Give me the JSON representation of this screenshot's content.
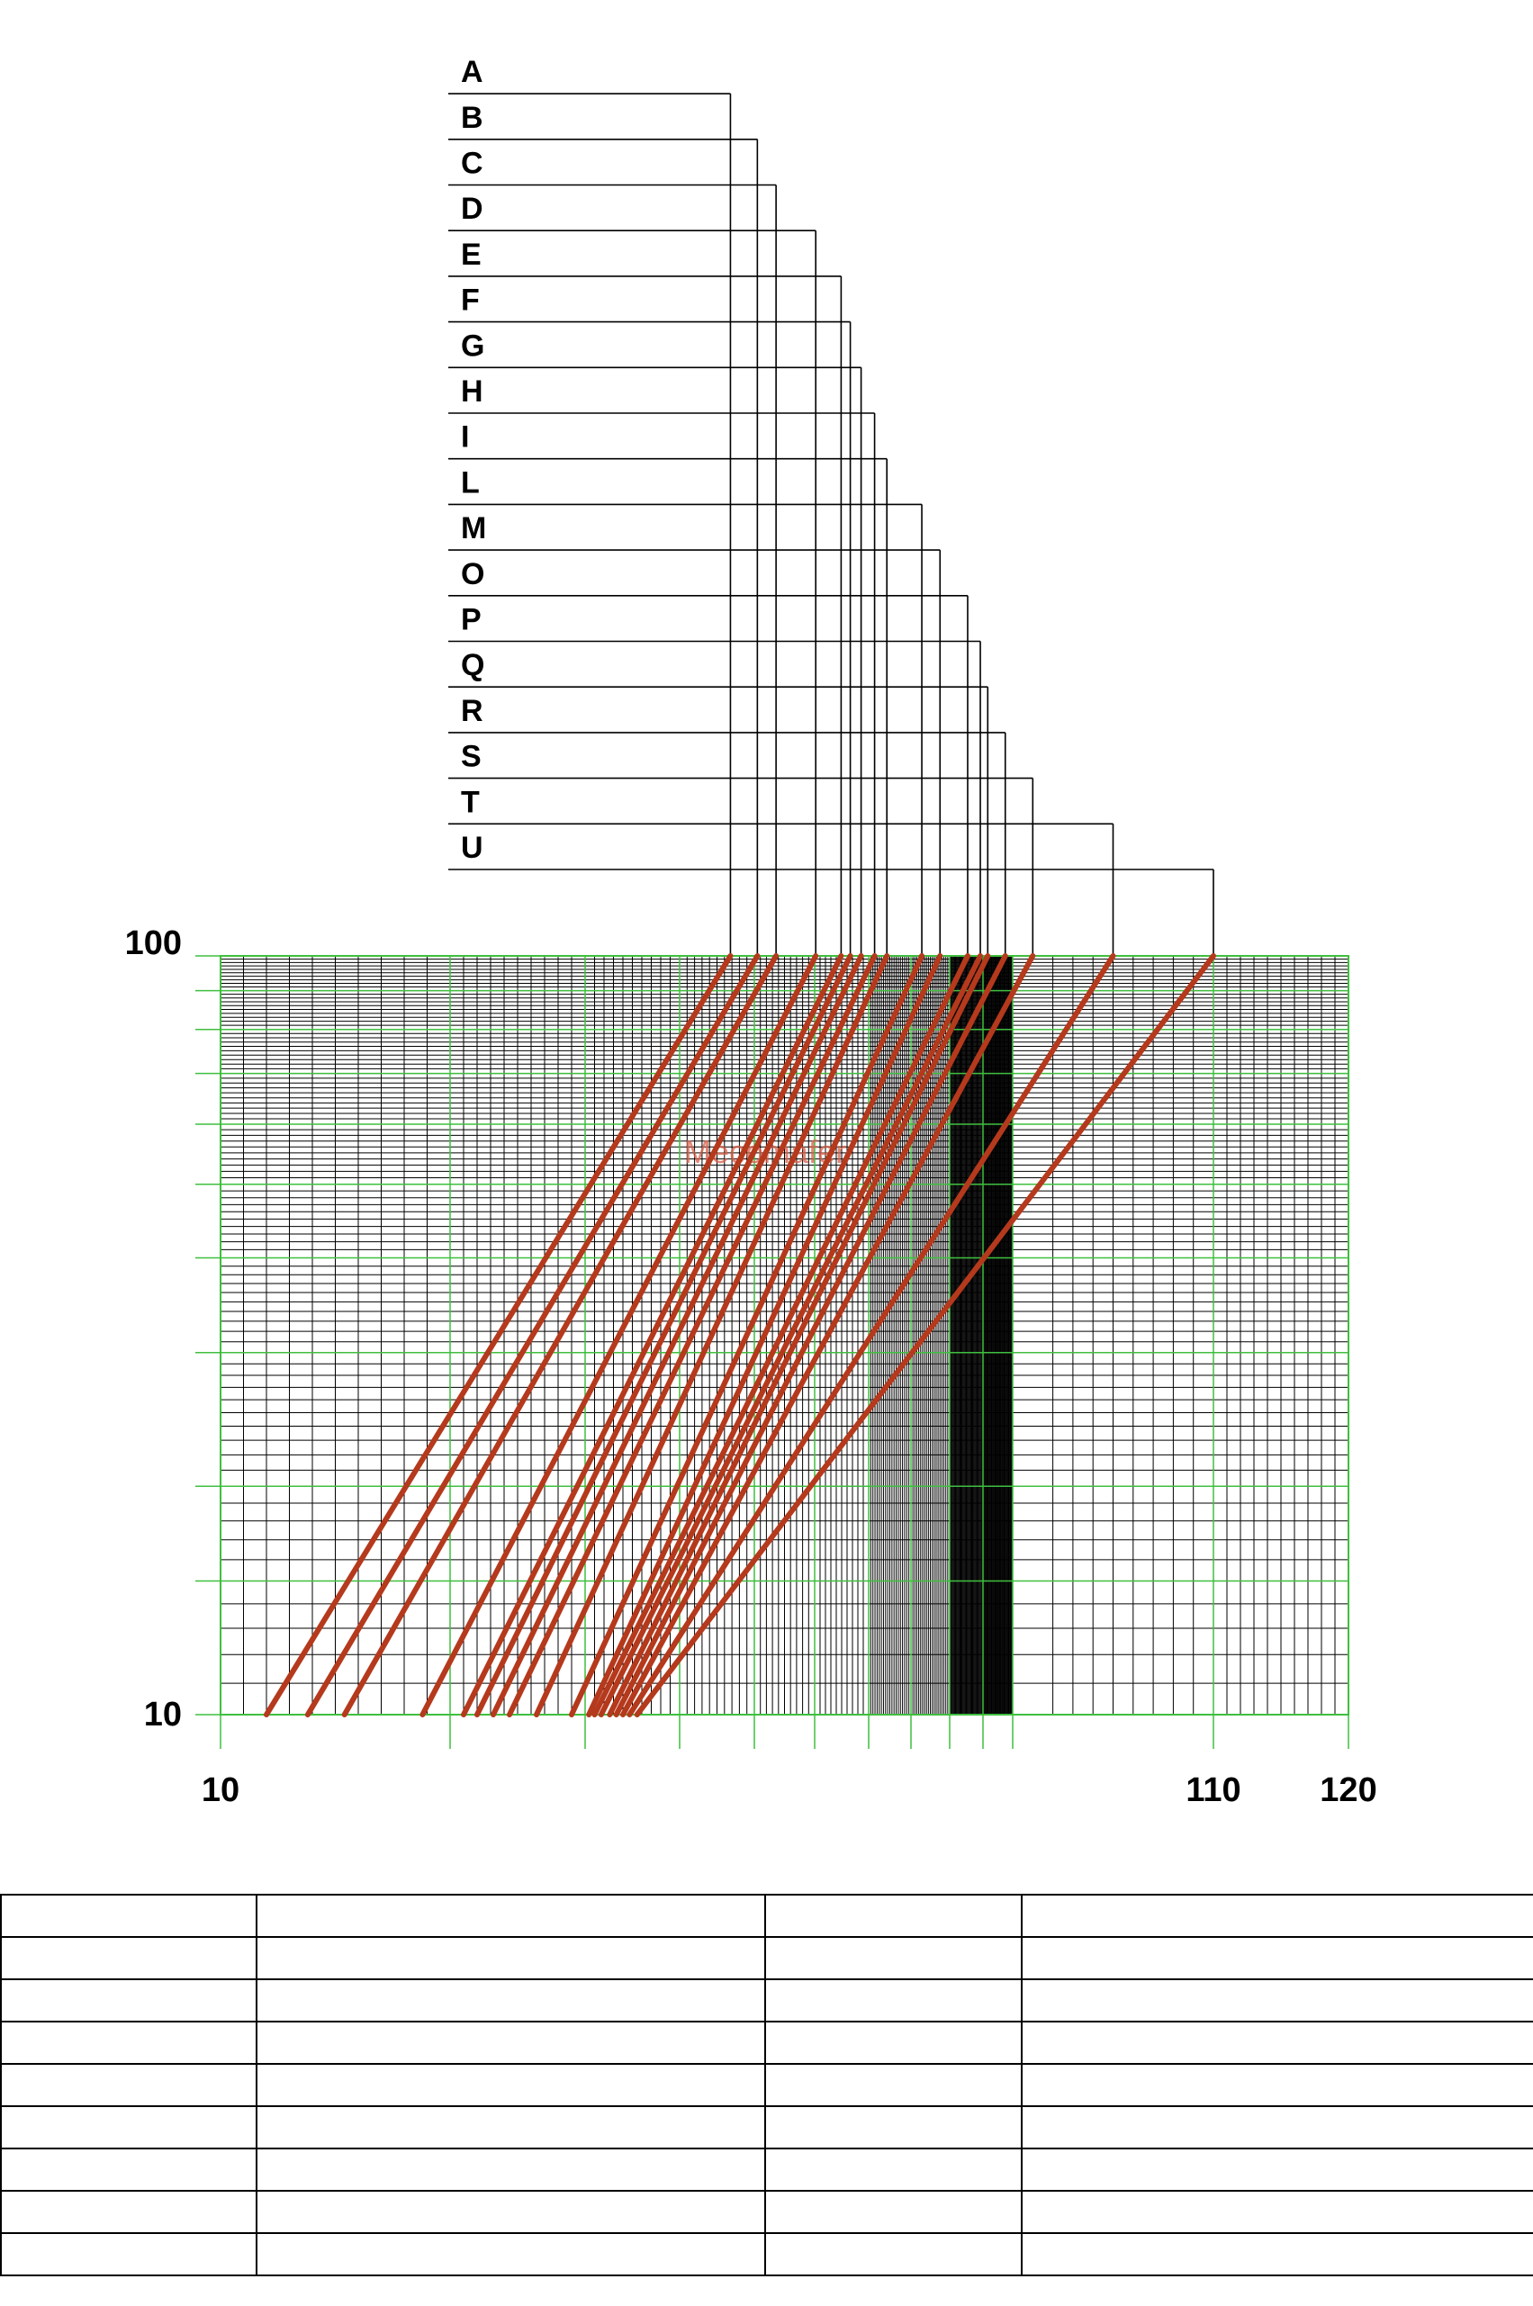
{
  "chart_data": {
    "type": "line",
    "title": "",
    "xlabel": "",
    "ylabel": "",
    "x_scale": "log-like (nonuniform)",
    "y_scale": "log",
    "xlim": [
      10,
      120
    ],
    "ylim": [
      10,
      100
    ],
    "x_tick_labels": [
      "10",
      "110",
      "120"
    ],
    "y_tick_labels": [
      "10",
      "100"
    ],
    "grid": true,
    "colors": {
      "curve": "#b5391c",
      "major_grid": "#3fbf3f",
      "minor_grid": "#000000"
    },
    "watermark": "Mecomafer",
    "curve_labels": [
      "U",
      "T",
      "S",
      "R",
      "Q",
      "P",
      "O",
      "M",
      "L",
      "I",
      "H",
      "G",
      "F",
      "E",
      "D",
      "C",
      "B",
      "A"
    ],
    "series": [
      {
        "name": "A",
        "x": [
          11.0,
          36.8
        ],
        "y": [
          10,
          100
        ]
      },
      {
        "name": "B",
        "x": [
          11.9,
          40.5
        ],
        "y": [
          10,
          100
        ]
      },
      {
        "name": "C",
        "x": [
          12.7,
          43.6
        ],
        "y": [
          10,
          100
        ]
      },
      {
        "name": "D",
        "x": [
          14.4,
          50.2
        ],
        "y": [
          10,
          100
        ]
      },
      {
        "name": "E",
        "x": [
          15.5,
          54.9
        ],
        "y": [
          10,
          100
        ]
      },
      {
        "name": "F",
        "x": [
          16.0,
          56.6
        ],
        "y": [
          10,
          100
        ]
      },
      {
        "name": "G",
        "x": [
          16.6,
          58.6
        ],
        "y": [
          10,
          100
        ]
      },
      {
        "name": "H",
        "x": [
          17.2,
          61.4
        ],
        "y": [
          10,
          100
        ]
      },
      {
        "name": "I",
        "x": [
          18.2,
          64.3
        ],
        "y": [
          10,
          100
        ]
      },
      {
        "name": "L",
        "x": [
          19.5,
          72.8
        ],
        "y": [
          10,
          100
        ]
      },
      {
        "name": "M",
        "x": [
          20.4,
          77.5
        ],
        "y": [
          10,
          100
        ]
      },
      {
        "name": "O",
        "x": [
          21.0,
          85.4
        ],
        "y": [
          10,
          100
        ]
      },
      {
        "name": "P",
        "x": [
          21.7,
          89.2
        ],
        "y": [
          10,
          100
        ]
      },
      {
        "name": "Q",
        "x": [
          22.6,
          91.6
        ],
        "y": [
          10,
          100
        ]
      },
      {
        "name": "R",
        "x": [
          23.3,
          97.5
        ],
        "y": [
          10,
          100
        ]
      },
      {
        "name": "S",
        "x": [
          24.0,
          101.0
        ],
        "y": [
          10,
          100
        ]
      },
      {
        "name": "T",
        "x": [
          24.7,
          105.0
        ],
        "y": [
          10,
          100
        ]
      },
      {
        "name": "U",
        "x": [
          25.5,
          110.0
        ],
        "y": [
          10,
          100
        ]
      }
    ]
  },
  "table": {
    "rows": 9,
    "columns": 4
  }
}
